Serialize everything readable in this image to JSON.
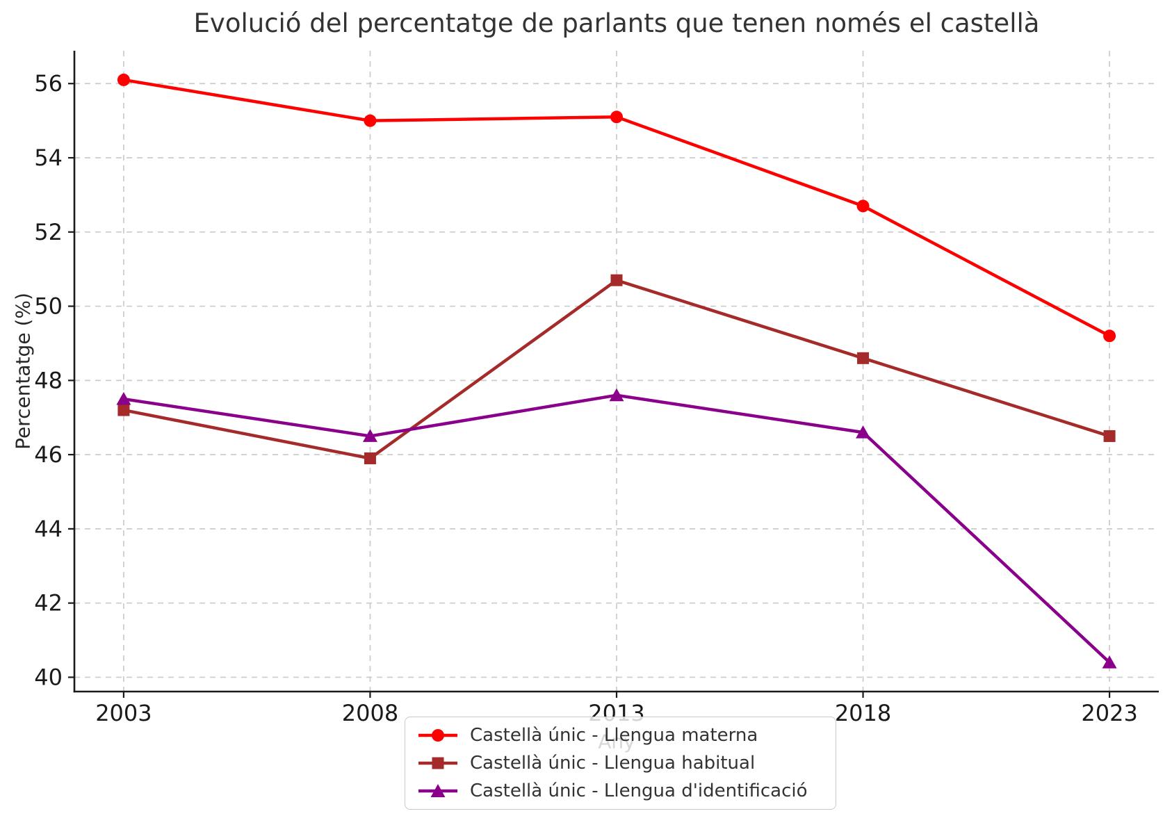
{
  "chart_data": {
    "type": "line",
    "title": "Evolució del percentatge de parlants que tenen només el castellà",
    "xlabel": "Any",
    "ylabel": "Percentatge (%)",
    "x": [
      2003,
      2008,
      2013,
      2018,
      2023
    ],
    "xticklabels": [
      "2003",
      "2008",
      "2013",
      "2018",
      "2023"
    ],
    "yticks": [
      40,
      42,
      44,
      46,
      48,
      50,
      52,
      54,
      56
    ],
    "xlim": [
      2002,
      2024
    ],
    "ylim": [
      39.615,
      56.885
    ],
    "grid": "dashed gray, horizontal and vertical",
    "legend_position": "bottom center, overlapping x-axis label",
    "series": [
      {
        "name": "Castellà únic - Llengua materna",
        "marker": "circle",
        "color": "#ff0000",
        "values": [
          56.1,
          55.0,
          55.1,
          52.7,
          49.2
        ]
      },
      {
        "name": "Castellà únic - Llengua habitual",
        "marker": "square",
        "color": "#a52a2a",
        "values": [
          47.2,
          45.9,
          50.7,
          48.6,
          46.5
        ]
      },
      {
        "name": "Castellà únic - Llengua d'identificació",
        "marker": "triangle",
        "color": "#8b008b",
        "values": [
          47.5,
          46.5,
          47.6,
          46.6,
          40.4
        ]
      }
    ],
    "colors": {
      "grid": "#cbcbcb",
      "spine": "#1a1a1a",
      "tick_label": "#1a1a1a",
      "text": "#262626",
      "legend_border": "#c9c9c9"
    }
  }
}
